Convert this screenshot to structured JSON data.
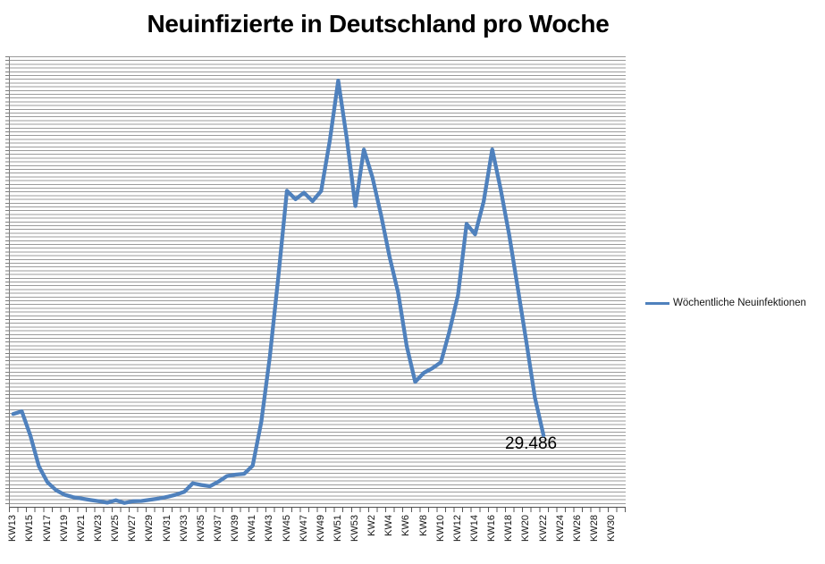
{
  "title": "Neuinfizierte in Deutschland pro Woche",
  "legend": {
    "label": "Wöchentliche Neuinfektionen",
    "color": "#4F81BD"
  },
  "annotation": {
    "last_value_label": "29.486"
  },
  "colors": {
    "series_line": "#4F81BD",
    "gridline": "#9B9B9B",
    "axis": "#595959",
    "text": "#000000"
  },
  "chart_data": {
    "type": "line",
    "title": "Neuinfizierte in Deutschland pro Woche",
    "xlabel": "",
    "ylabel": "",
    "ylim": [
      0,
      186000
    ],
    "grid": "horizontal-dense",
    "legend_position": "right",
    "x_axis_total_slots": 72,
    "x_axis_tick_labels": [
      "KW13",
      "KW15",
      "KW17",
      "KW19",
      "KW21",
      "KW23",
      "KW25",
      "KW27",
      "KW29",
      "KW31",
      "KW33",
      "KW35",
      "KW37",
      "KW39",
      "KW41",
      "KW43",
      "KW45",
      "KW47",
      "KW49",
      "KW51",
      "KW53",
      "KW2",
      "KW4",
      "KW6",
      "KW8",
      "KW10",
      "KW12",
      "KW14",
      "KW16",
      "KW18",
      "KW20",
      "KW22",
      "KW24",
      "KW26",
      "KW28",
      "KW30"
    ],
    "series": [
      {
        "name": "Wöchentliche Neuinfektionen",
        "x": [
          "KW13",
          "KW14",
          "KW15",
          "KW16",
          "KW17",
          "KW18",
          "KW19",
          "KW20",
          "KW21",
          "KW22",
          "KW23",
          "KW24",
          "KW25",
          "KW26",
          "KW27",
          "KW28",
          "KW29",
          "KW30",
          "KW31",
          "KW32",
          "KW33",
          "KW34",
          "KW35",
          "KW36",
          "KW37",
          "KW38",
          "KW39",
          "KW40",
          "KW41",
          "KW42",
          "KW43",
          "KW44",
          "KW45",
          "KW46",
          "KW47",
          "KW48",
          "KW49",
          "KW50",
          "KW51",
          "KW52",
          "KW53",
          "KW1",
          "KW2",
          "KW3",
          "KW4",
          "KW5",
          "KW6",
          "KW7",
          "KW8",
          "KW9",
          "KW10",
          "KW11",
          "KW12",
          "KW13",
          "KW14",
          "KW15",
          "KW16",
          "KW17",
          "KW18",
          "KW19",
          "KW20",
          "KW21",
          "KW22"
        ],
        "values": [
          38300,
          39400,
          29500,
          16700,
          10100,
          6900,
          5000,
          4000,
          3400,
          2800,
          2300,
          1700,
          2700,
          1600,
          2300,
          2400,
          2900,
          3400,
          4100,
          5000,
          6200,
          9700,
          9000,
          8500,
          10400,
          12700,
          13300,
          13600,
          17000,
          35000,
          62000,
          95000,
          130500,
          127000,
          129700,
          126200,
          130400,
          151000,
          176000,
          152000,
          124200,
          147500,
          136000,
          120500,
          103300,
          88500,
          66400,
          51600,
          55300,
          57200,
          59700,
          72400,
          87400,
          116800,
          112500,
          126000,
          147600,
          131000,
          112000,
          90000,
          67800,
          45000,
          29486
        ]
      }
    ],
    "data_label": {
      "x": "KW22",
      "value": 29486,
      "text": "29.486"
    }
  }
}
